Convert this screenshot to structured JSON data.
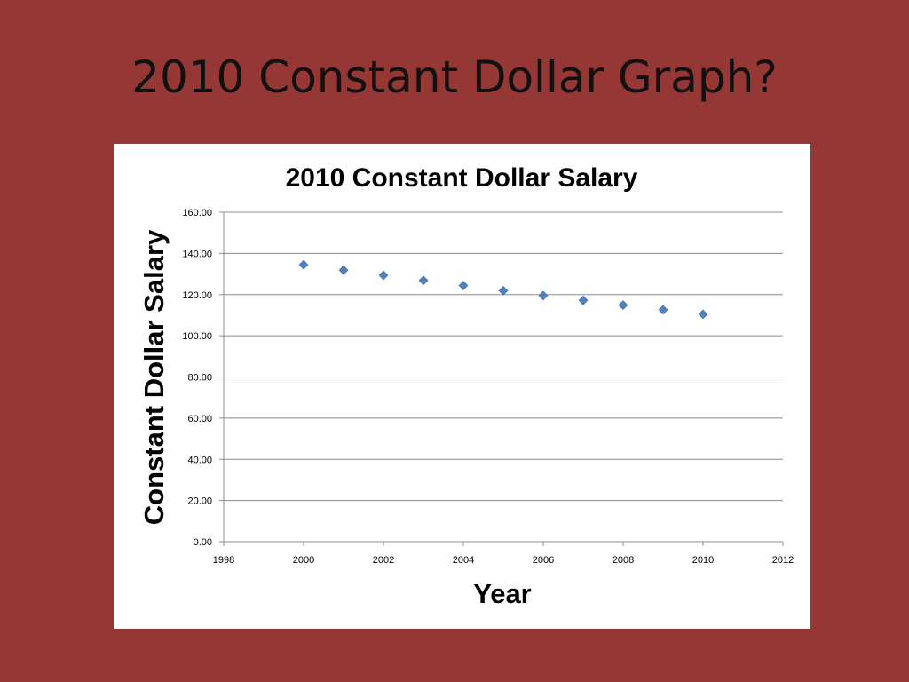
{
  "slide": {
    "title": "2010 Constant Dollar Graph?"
  },
  "chart_data": {
    "type": "scatter",
    "title": "2010 Constant Dollar Salary",
    "xlabel": "Year",
    "ylabel": "Constant Dollar Salary",
    "xlim": [
      1998,
      2012
    ],
    "ylim": [
      0,
      160
    ],
    "x_ticks": [
      1998,
      2000,
      2002,
      2004,
      2006,
      2008,
      2010,
      2012
    ],
    "y_ticks": [
      "0.00",
      "20.00",
      "40.00",
      "60.00",
      "80.00",
      "100.00",
      "120.00",
      "140.00",
      "160.00"
    ],
    "grid": "horizontal",
    "marker": "diamond",
    "marker_color": "#4f81bd",
    "x": [
      2000,
      2001,
      2002,
      2003,
      2004,
      2005,
      2006,
      2007,
      2008,
      2009,
      2010
    ],
    "y": [
      134.5,
      131.9,
      129.4,
      126.9,
      124.4,
      121.9,
      119.5,
      117.2,
      114.9,
      112.6,
      110.4
    ]
  }
}
